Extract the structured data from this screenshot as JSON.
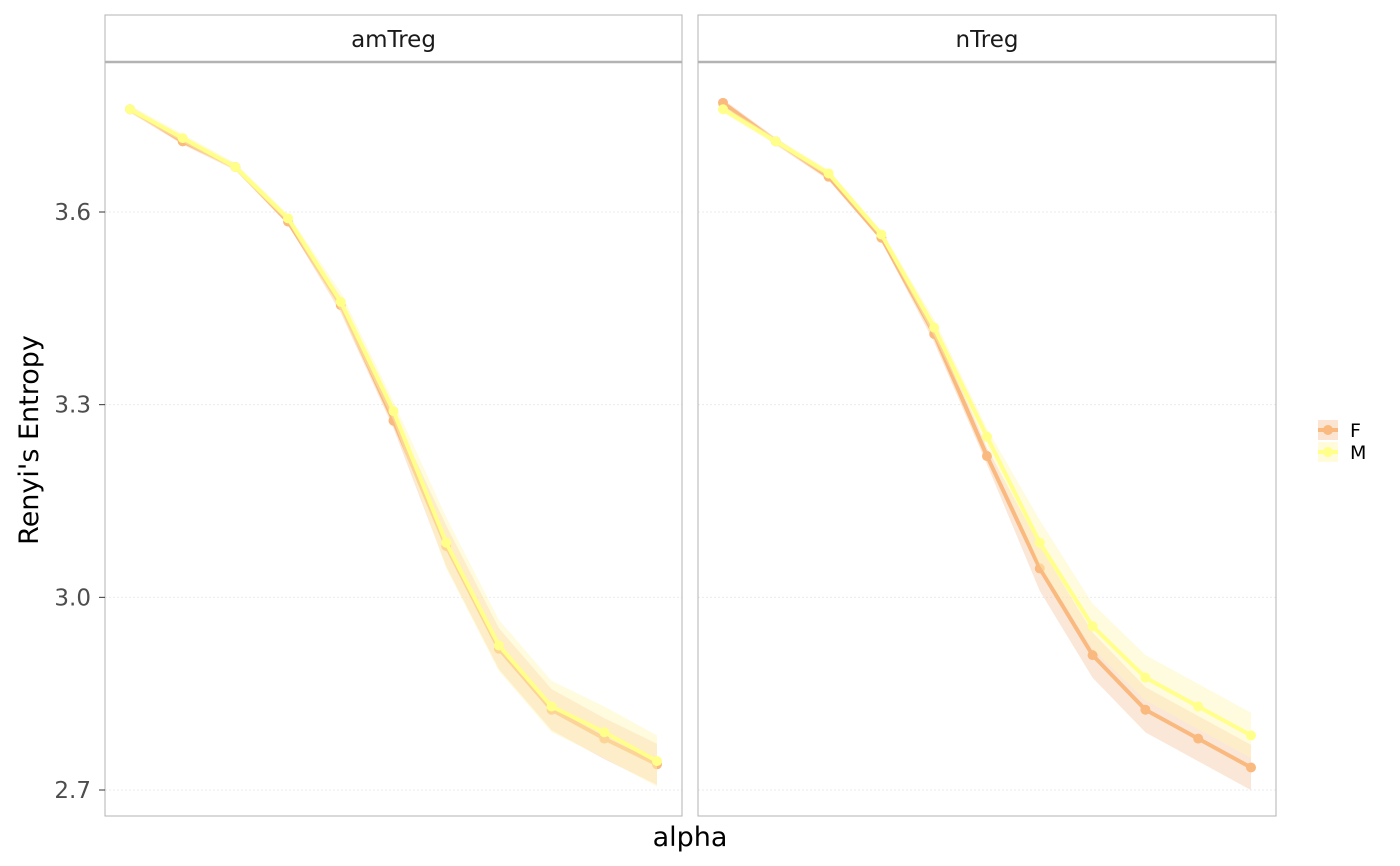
{
  "chart_data": {
    "type": "line",
    "facets": [
      "amTreg",
      "nTreg"
    ],
    "xlabel": "alpha",
    "ylabel": "Renyi's Entropy",
    "ylim": [
      2.66,
      3.9
    ],
    "yticks": [
      2.7,
      3.0,
      3.3,
      3.6
    ],
    "ytick_labels": [
      "2.7",
      "3.0",
      "3.3",
      "3.6"
    ],
    "x_points": 11,
    "x_ticks_shown": false,
    "grid": "horizontal major, light",
    "legend_position": "right",
    "series": [
      {
        "name": "F",
        "color": "#F9B97F",
        "fill": "#F7C9A6",
        "panels": {
          "amTreg": {
            "values": [
              3.76,
              3.71,
              3.67,
              3.585,
              3.455,
              3.275,
              3.08,
              2.92,
              2.825,
              2.78,
              2.74
            ],
            "band": 0.02
          },
          "nTreg": {
            "values": [
              3.77,
              3.71,
              3.655,
              3.56,
              3.41,
              3.22,
              3.045,
              2.91,
              2.825,
              2.78,
              2.735
            ],
            "band": 0.022
          }
        }
      },
      {
        "name": "M",
        "color": "#FFFF8A",
        "fill": "#FFF7B8",
        "panels": {
          "amTreg": {
            "values": [
              3.76,
              3.715,
              3.67,
              3.59,
              3.46,
              3.29,
              3.085,
              2.925,
              2.83,
              2.79,
              2.745
            ],
            "band": 0.025
          },
          "nTreg": {
            "values": [
              3.76,
              3.71,
              3.66,
              3.565,
              3.42,
              3.25,
              3.085,
              2.955,
              2.875,
              2.83,
              2.785
            ],
            "band": 0.022
          }
        }
      }
    ]
  }
}
